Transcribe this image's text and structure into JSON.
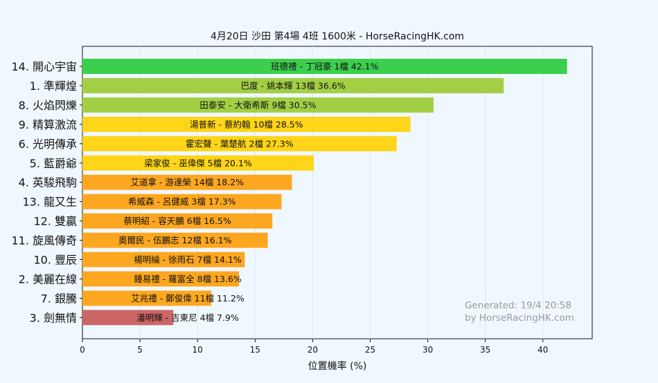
{
  "chart_data": {
    "type": "bar",
    "orientation": "horizontal",
    "title": "4月20日  沙田  第4場  4班  1600米 - HorseRacingHK.com",
    "xlabel": "位置機率 (%)",
    "ylabel": "",
    "xlim": [
      0,
      44
    ],
    "xticks": [
      0,
      5,
      10,
      15,
      20,
      25,
      30,
      35,
      40
    ],
    "grid": "vertical",
    "watermark": [
      "Generated: 19/4 20:58",
      "by HorseRacingHK.com"
    ],
    "categories": [
      "14. 開心宇宙",
      "1. 準輝煌",
      "8. 火焰閃爍",
      "9. 精算激流",
      "6. 光明傳承",
      "5. 藍爵爺",
      "4. 英駿飛駒",
      "13. 龍又生",
      "12. 雙贏",
      "11. 旋風傳奇",
      "10. 豐辰",
      "2. 美麗在線",
      "7. 銀騰",
      "3. 劍無情"
    ],
    "values": [
      42.1,
      36.6,
      30.5,
      28.5,
      27.3,
      20.1,
      18.2,
      17.3,
      16.5,
      16.1,
      14.1,
      13.6,
      11.2,
      7.9
    ],
    "labels": [
      "班德禮 - 丁冠豪 1檔  42.1%",
      "巴度 - 姚本輝 13檔  36.6%",
      "田泰安 - 大衛希斯 9檔  30.5%",
      "湯普新 - 蔡約翰 10檔  28.5%",
      "霍宏聲 - 葉楚航 2檔  27.3%",
      "梁家俊 - 巫偉傑 5檔  20.1%",
      "艾道拿 - 游達榮 14檔  18.2%",
      "希威森 - 呂健威 3檔  17.3%",
      "蔡明紹 - 容天鵬 6檔  16.5%",
      "奧爾民 - 伍鵬志 12檔  16.1%",
      "楊明綸 - 徐雨石 7檔  14.1%",
      "鍾易禮 - 羅富全 8檔  13.6%",
      "艾兆禮 - 鄭俊偉 11檔  11.2%",
      "潘明輝 - 吉東尼 4檔  7.9%"
    ],
    "colors": [
      "#3ccf4e",
      "#a3cf45",
      "#a3cf45",
      "#fed518",
      "#fed518",
      "#fed518",
      "#fda720",
      "#fda720",
      "#fda720",
      "#fda720",
      "#fda720",
      "#fda720",
      "#fda720",
      "#cc6666"
    ]
  }
}
